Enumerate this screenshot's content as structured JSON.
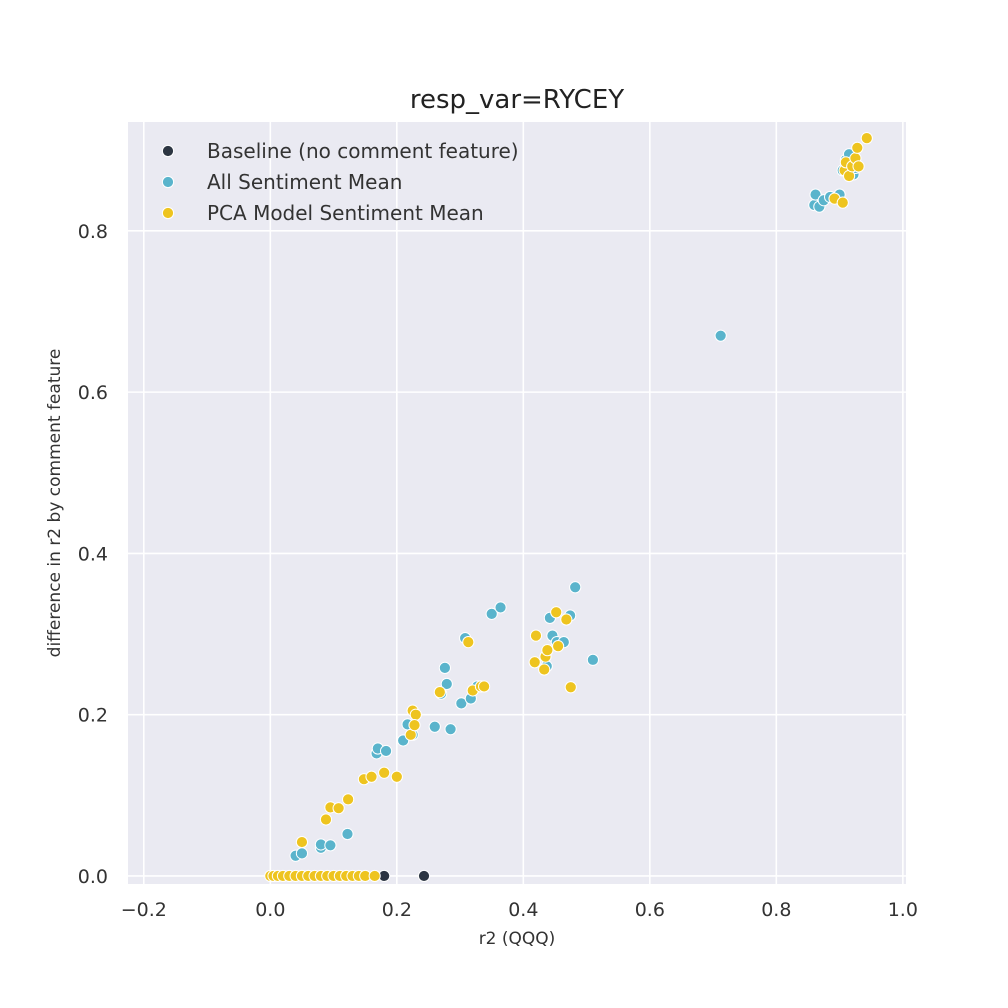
{
  "chart_data": {
    "type": "scatter",
    "title": "resp_var=RYCEY",
    "xlabel": "r2 (QQQ)",
    "ylabel": "difference in r2 by comment feature",
    "xlim": [
      -0.225,
      1.005
    ],
    "ylim": [
      -0.01,
      0.935
    ],
    "xticks": [
      "−0.2",
      "0.0",
      "0.2",
      "0.4",
      "0.6",
      "0.8",
      "1.0"
    ],
    "xtick_values": [
      -0.2,
      0.0,
      0.2,
      0.4,
      0.6,
      0.8,
      1.0
    ],
    "yticks": [
      "0.0",
      "0.2",
      "0.4",
      "0.6",
      "0.8"
    ],
    "ytick_values": [
      0.0,
      0.2,
      0.4,
      0.6,
      0.8
    ],
    "grid": true,
    "legend_position": "top-left",
    "background": "#eaeaf2",
    "series": [
      {
        "name": "Baseline (no comment feature)",
        "color": "#2c3542",
        "points": [
          [
            0.18,
            0.0
          ],
          [
            0.243,
            0.0
          ]
        ]
      },
      {
        "name": "All Sentiment Mean",
        "color": "#5ab4cc",
        "points": [
          [
            0.04,
            0.025
          ],
          [
            0.05,
            0.028
          ],
          [
            0.08,
            0.035
          ],
          [
            0.08,
            0.039
          ],
          [
            0.095,
            0.038
          ],
          [
            0.122,
            0.052
          ],
          [
            0.168,
            0.152
          ],
          [
            0.17,
            0.158
          ],
          [
            0.183,
            0.155
          ],
          [
            0.21,
            0.168
          ],
          [
            0.217,
            0.188
          ],
          [
            0.225,
            0.175
          ],
          [
            0.26,
            0.185
          ],
          [
            0.27,
            0.226
          ],
          [
            0.276,
            0.258
          ],
          [
            0.279,
            0.238
          ],
          [
            0.285,
            0.182
          ],
          [
            0.302,
            0.214
          ],
          [
            0.308,
            0.295
          ],
          [
            0.317,
            0.22
          ],
          [
            0.327,
            0.235
          ],
          [
            0.35,
            0.325
          ],
          [
            0.364,
            0.333
          ],
          [
            0.437,
            0.26
          ],
          [
            0.442,
            0.32
          ],
          [
            0.446,
            0.298
          ],
          [
            0.453,
            0.29
          ],
          [
            0.464,
            0.29
          ],
          [
            0.474,
            0.323
          ],
          [
            0.482,
            0.358
          ],
          [
            0.51,
            0.268
          ],
          [
            0.712,
            0.67
          ],
          [
            0.86,
            0.832
          ],
          [
            0.862,
            0.845
          ],
          [
            0.868,
            0.83
          ],
          [
            0.875,
            0.838
          ],
          [
            0.885,
            0.842
          ],
          [
            0.9,
            0.845
          ],
          [
            0.905,
            0.875
          ],
          [
            0.91,
            0.888
          ],
          [
            0.915,
            0.895
          ],
          [
            0.918,
            0.882
          ],
          [
            0.922,
            0.87
          ],
          [
            0.925,
            0.878
          ]
        ]
      },
      {
        "name": "PCA Model Sentiment Mean",
        "color": "#eec41f",
        "points": [
          [
            0.0,
            0.0
          ],
          [
            0.005,
            0.0
          ],
          [
            0.012,
            0.0
          ],
          [
            0.02,
            0.0
          ],
          [
            0.03,
            0.0
          ],
          [
            0.04,
            0.0
          ],
          [
            0.05,
            0.0
          ],
          [
            0.06,
            0.0
          ],
          [
            0.07,
            0.0
          ],
          [
            0.08,
            0.0
          ],
          [
            0.09,
            0.0
          ],
          [
            0.1,
            0.0
          ],
          [
            0.11,
            0.0
          ],
          [
            0.12,
            0.0
          ],
          [
            0.13,
            0.0
          ],
          [
            0.14,
            0.0
          ],
          [
            0.15,
            0.0
          ],
          [
            0.165,
            0.0
          ],
          [
            0.05,
            0.042
          ],
          [
            0.088,
            0.07
          ],
          [
            0.095,
            0.085
          ],
          [
            0.108,
            0.084
          ],
          [
            0.123,
            0.095
          ],
          [
            0.148,
            0.12
          ],
          [
            0.16,
            0.123
          ],
          [
            0.18,
            0.128
          ],
          [
            0.2,
            0.123
          ],
          [
            0.222,
            0.175
          ],
          [
            0.225,
            0.205
          ],
          [
            0.23,
            0.2
          ],
          [
            0.228,
            0.187
          ],
          [
            0.268,
            0.228
          ],
          [
            0.313,
            0.29
          ],
          [
            0.32,
            0.23
          ],
          [
            0.333,
            0.235
          ],
          [
            0.338,
            0.235
          ],
          [
            0.418,
            0.265
          ],
          [
            0.42,
            0.298
          ],
          [
            0.433,
            0.256
          ],
          [
            0.435,
            0.272
          ],
          [
            0.438,
            0.28
          ],
          [
            0.452,
            0.327
          ],
          [
            0.455,
            0.285
          ],
          [
            0.468,
            0.318
          ],
          [
            0.475,
            0.234
          ],
          [
            0.892,
            0.84
          ],
          [
            0.905,
            0.835
          ],
          [
            0.908,
            0.875
          ],
          [
            0.91,
            0.885
          ],
          [
            0.915,
            0.868
          ],
          [
            0.92,
            0.88
          ],
          [
            0.925,
            0.89
          ],
          [
            0.93,
            0.88
          ],
          [
            0.928,
            0.903
          ],
          [
            0.943,
            0.915
          ]
        ]
      }
    ]
  }
}
